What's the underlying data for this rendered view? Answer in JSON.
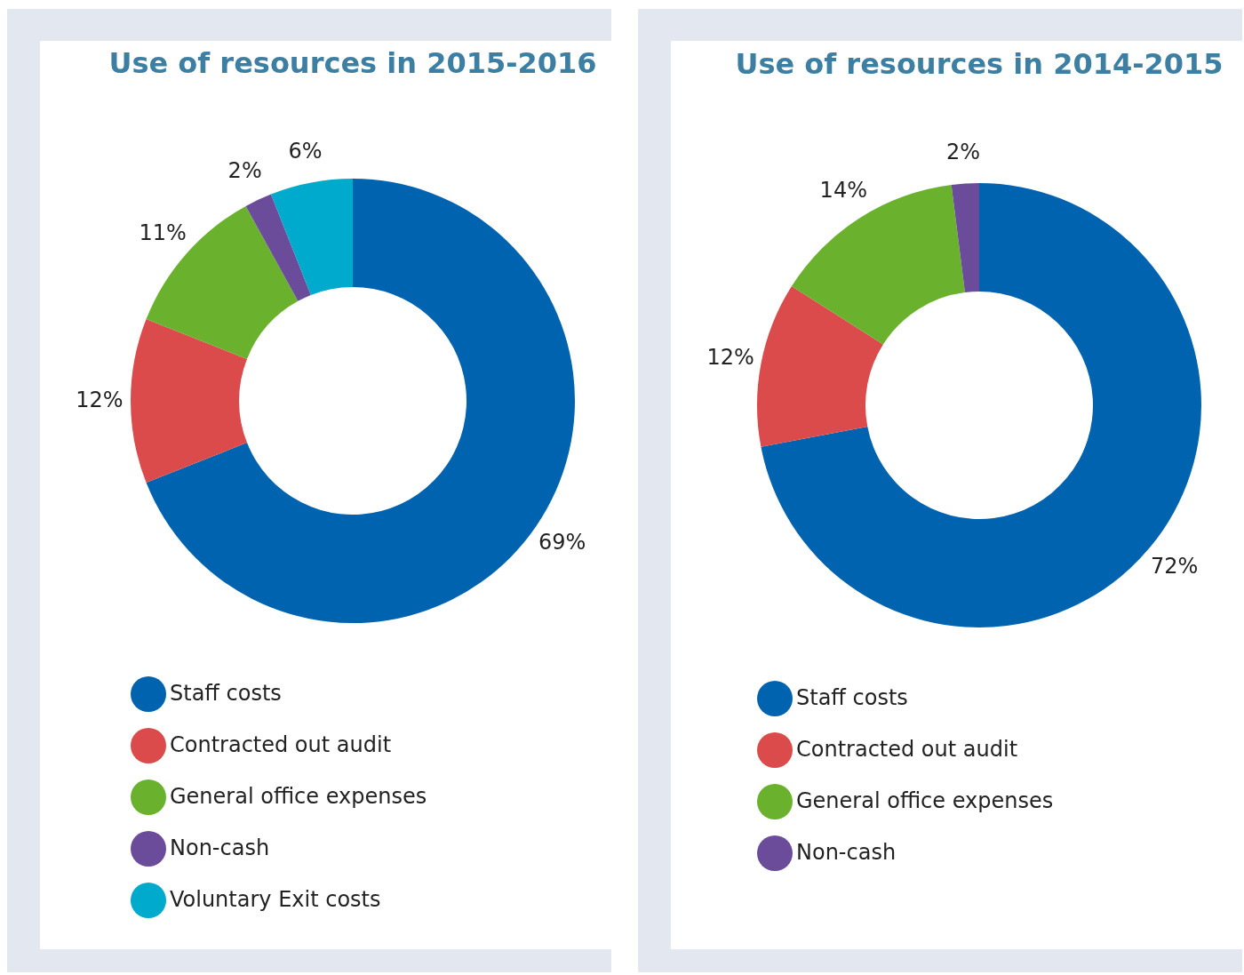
{
  "chart_data": [
    {
      "type": "donut",
      "title": "Use of resources in 2015-2016",
      "categories": [
        "Staff costs",
        "Contracted out audit",
        "General office expenses",
        "Non-cash",
        "Voluntary Exit costs"
      ],
      "values": [
        69,
        12,
        11,
        2,
        6
      ],
      "value_labels": [
        "69%",
        "12%",
        "11%",
        "2%",
        "6%"
      ],
      "colors": [
        "#0063af",
        "#dc4b4b",
        "#6ab22e",
        "#6b4c9a",
        "#00aacc"
      ],
      "legend": "bottom"
    },
    {
      "type": "donut",
      "title": "Use of resources in 2014-2015",
      "categories": [
        "Staff costs",
        "Contracted out audit",
        "General office expenses",
        "Non-cash"
      ],
      "values": [
        72,
        12,
        14,
        2
      ],
      "value_labels": [
        "72%",
        "12%",
        "14%",
        "2%"
      ],
      "colors": [
        "#0063af",
        "#dc4b4b",
        "#6ab22e",
        "#6b4c9a"
      ],
      "legend": "bottom"
    }
  ]
}
